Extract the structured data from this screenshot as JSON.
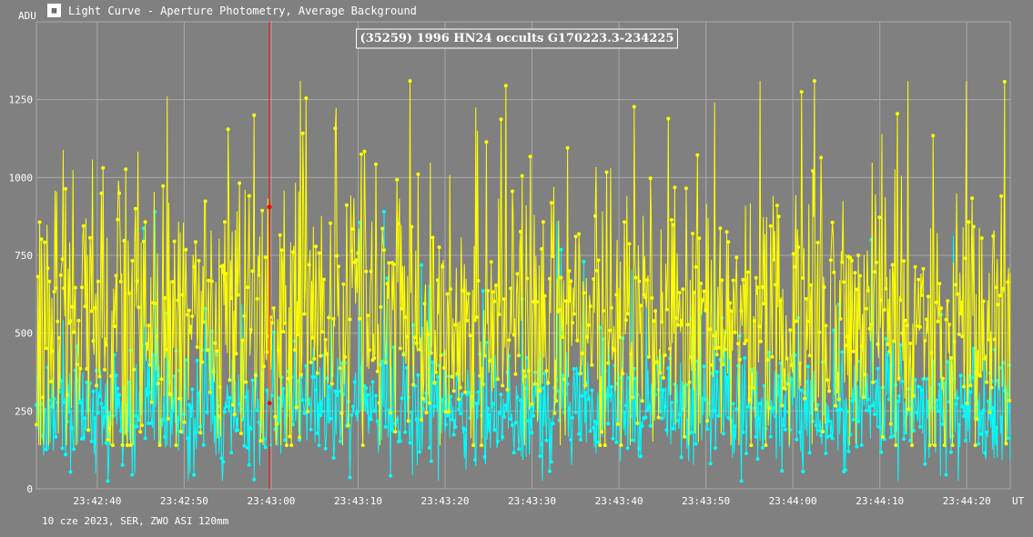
{
  "window": {
    "title": "Light Curve - Aperture Photometry, Average Background",
    "icon": "light-curve-app-icon"
  },
  "footer": {
    "info": "10 cze 2023, SER, ZWO ASI 120mm"
  },
  "colors": {
    "background": "#808080",
    "grid": "#a8a8a8",
    "target_series": "#ffff00",
    "background_series": "#00ffff",
    "marker_line": "#ff0000"
  },
  "chart_data": {
    "type": "line",
    "title": "(35259) 1996 HN24 occults G170223.3-234225",
    "ylabel": "ADU",
    "xlabel": "UT",
    "ylim": [
      0,
      1500
    ],
    "yticks": [
      0,
      250,
      500,
      750,
      1000,
      1250
    ],
    "x_start": "23:42:33",
    "x_end": "23:44:25",
    "xticks": [
      "23:42:40",
      "23:42:50",
      "23:43:00",
      "23:43:10",
      "23:43:20",
      "23:43:30",
      "23:43:40",
      "23:43:50",
      "23:44:00",
      "23:44:10",
      "23:44:20"
    ],
    "grid": true,
    "marker": {
      "time": "23:42:59.8",
      "target_value": 905,
      "background_value": 275
    },
    "series": [
      {
        "key": "target",
        "mean": 530,
        "sigma": 220,
        "min_value": 140,
        "max_value": 1310
      },
      {
        "key": "background",
        "mean": 255,
        "sigma": 95,
        "min_value": 25,
        "max_value": 890
      }
    ],
    "sampled_series": [
      {
        "key": "target",
        "times": [
          "23:42:40",
          "23:42:48",
          "23:42:55",
          "23:42:58",
          "23:43:04",
          "23:43:16",
          "23:43:27",
          "23:43:39",
          "23:43:51",
          "23:44:01",
          "23:44:12",
          "23:44:20",
          "23:44:24"
        ],
        "values": [
          600,
          1260,
          1155,
          1200,
          1255,
          1310,
          1295,
          1030,
          1240,
          1275,
          1205,
          1310,
          940
        ]
      },
      {
        "key": "background",
        "times": [
          "23:42:36",
          "23:42:44",
          "23:42:58",
          "23:43:05",
          "23:43:13",
          "23:43:29",
          "23:43:36",
          "23:43:48",
          "23:44:06",
          "23:44:17"
        ],
        "values": [
          130,
          45,
          30,
          150,
          890,
          280,
          730,
          90,
          60,
          40
        ]
      }
    ]
  }
}
